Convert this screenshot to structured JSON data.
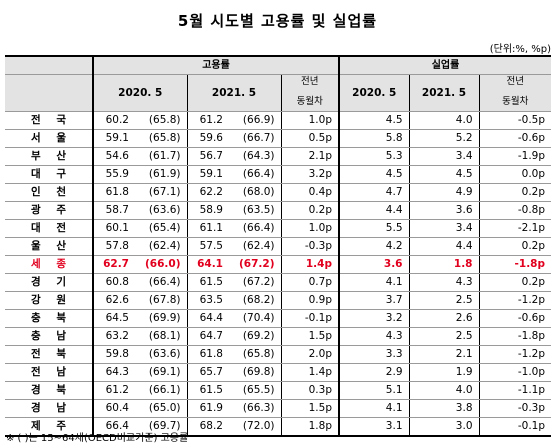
{
  "title": "5월 시도별 고용률 및 실업률",
  "unit": "(단위:%, %p)",
  "header": {
    "employment_group": "고용률",
    "unemployment_group": "실업률",
    "col_2020": "2020. 5",
    "col_2021": "2021. 5",
    "col_yoy_line1": "전년",
    "col_yoy_line2": "동월차"
  },
  "rows": [
    {
      "region": "전 국",
      "e2020": "60.2",
      "e2020p": "(65.8)",
      "e2021": "61.2",
      "e2021p": "(66.9)",
      "edif": "1.0p",
      "u2020": "4.5",
      "u2021": "4.0",
      "udif": "-0.5p"
    },
    {
      "region": "서 울",
      "e2020": "59.1",
      "e2020p": "(65.8)",
      "e2021": "59.6",
      "e2021p": "(66.7)",
      "edif": "0.5p",
      "u2020": "5.8",
      "u2021": "5.2",
      "udif": "-0.6p"
    },
    {
      "region": "부 산",
      "e2020": "54.6",
      "e2020p": "(61.7)",
      "e2021": "56.7",
      "e2021p": "(64.3)",
      "edif": "2.1p",
      "u2020": "5.3",
      "u2021": "3.4",
      "udif": "-1.9p"
    },
    {
      "region": "대 구",
      "e2020": "55.9",
      "e2020p": "(61.9)",
      "e2021": "59.1",
      "e2021p": "(66.4)",
      "edif": "3.2p",
      "u2020": "4.5",
      "u2021": "4.5",
      "udif": "0.0p"
    },
    {
      "region": "인 천",
      "e2020": "61.8",
      "e2020p": "(67.1)",
      "e2021": "62.2",
      "e2021p": "(68.0)",
      "edif": "0.4p",
      "u2020": "4.7",
      "u2021": "4.9",
      "udif": "0.2p"
    },
    {
      "region": "광 주",
      "e2020": "58.7",
      "e2020p": "(63.6)",
      "e2021": "58.9",
      "e2021p": "(63.5)",
      "edif": "0.2p",
      "u2020": "4.4",
      "u2021": "3.6",
      "udif": "-0.8p"
    },
    {
      "region": "대 전",
      "e2020": "60.1",
      "e2020p": "(65.4)",
      "e2021": "61.1",
      "e2021p": "(66.4)",
      "edif": "1.0p",
      "u2020": "5.5",
      "u2021": "3.4",
      "udif": "-2.1p"
    },
    {
      "region": "울 산",
      "e2020": "57.8",
      "e2020p": "(62.4)",
      "e2021": "57.5",
      "e2021p": "(62.4)",
      "edif": "-0.3p",
      "u2020": "4.2",
      "u2021": "4.4",
      "udif": "0.2p"
    },
    {
      "region": "세 종",
      "e2020": "62.7",
      "e2020p": "(66.0)",
      "e2021": "64.1",
      "e2021p": "(67.2)",
      "edif": "1.4p",
      "u2020": "3.6",
      "u2021": "1.8",
      "udif": "-1.8p",
      "highlight": true
    },
    {
      "region": "경 기",
      "e2020": "60.8",
      "e2020p": "(66.4)",
      "e2021": "61.5",
      "e2021p": "(67.2)",
      "edif": "0.7p",
      "u2020": "4.1",
      "u2021": "4.3",
      "udif": "0.2p"
    },
    {
      "region": "강 원",
      "e2020": "62.6",
      "e2020p": "(67.8)",
      "e2021": "63.5",
      "e2021p": "(68.2)",
      "edif": "0.9p",
      "u2020": "3.7",
      "u2021": "2.5",
      "udif": "-1.2p"
    },
    {
      "region": "충 북",
      "e2020": "64.5",
      "e2020p": "(69.9)",
      "e2021": "64.4",
      "e2021p": "(70.4)",
      "edif": "-0.1p",
      "u2020": "3.2",
      "u2021": "2.6",
      "udif": "-0.6p"
    },
    {
      "region": "충 남",
      "e2020": "63.2",
      "e2020p": "(68.1)",
      "e2021": "64.7",
      "e2021p": "(69.2)",
      "edif": "1.5p",
      "u2020": "4.3",
      "u2021": "2.5",
      "udif": "-1.8p"
    },
    {
      "region": "전 북",
      "e2020": "59.8",
      "e2020p": "(63.6)",
      "e2021": "61.8",
      "e2021p": "(65.8)",
      "edif": "2.0p",
      "u2020": "3.3",
      "u2021": "2.1",
      "udif": "-1.2p"
    },
    {
      "region": "전 남",
      "e2020": "64.3",
      "e2020p": "(69.1)",
      "e2021": "65.7",
      "e2021p": "(69.8)",
      "edif": "1.4p",
      "u2020": "2.9",
      "u2021": "1.9",
      "udif": "-1.0p"
    },
    {
      "region": "경 북",
      "e2020": "61.2",
      "e2020p": "(66.1)",
      "e2021": "61.5",
      "e2021p": "(65.5)",
      "edif": "0.3p",
      "u2020": "5.1",
      "u2021": "4.0",
      "udif": "-1.1p"
    },
    {
      "region": "경 남",
      "e2020": "60.4",
      "e2020p": "(65.0)",
      "e2021": "61.9",
      "e2021p": "(66.3)",
      "edif": "1.5p",
      "u2020": "4.1",
      "u2021": "3.8",
      "udif": "-0.3p"
    },
    {
      "region": "제 주",
      "e2020": "66.4",
      "e2020p": "(69.7)",
      "e2021": "68.2",
      "e2021p": "(72.0)",
      "edif": "1.8p",
      "u2020": "3.1",
      "u2021": "3.0",
      "udif": "-0.1p"
    }
  ],
  "note": "※ ( )는 15~64세(OECD비교기준) 고용률"
}
